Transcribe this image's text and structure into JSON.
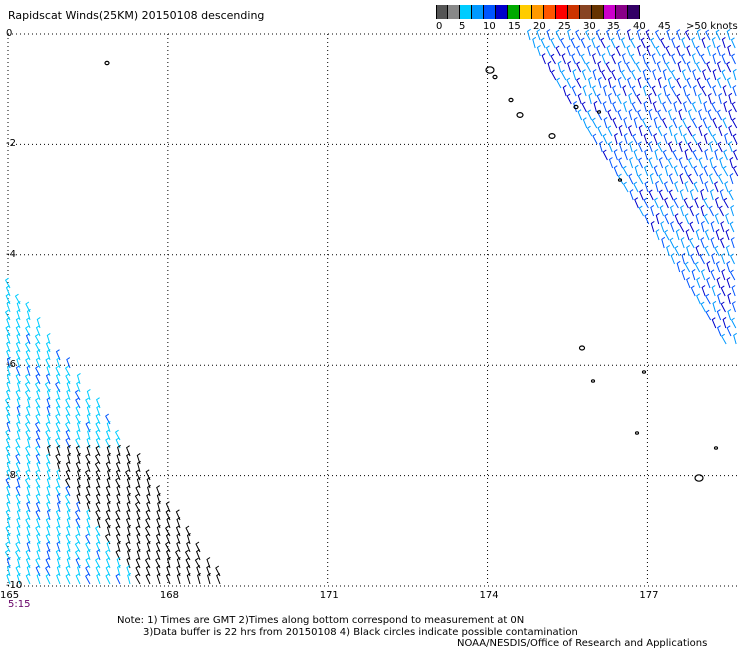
{
  "title": "Rapidscat Winds(25KM) 20150108 descending",
  "legend": {
    "swatches": [
      "#555555",
      "#888888",
      "#00ccff",
      "#0099ff",
      "#0055ff",
      "#0000cc",
      "#00aa00",
      "#ffcc00",
      "#ff9900",
      "#ff5500",
      "#ff0000",
      "#cc3300",
      "#884422",
      "#663300",
      "#cc00cc",
      "#880088",
      "#330066"
    ],
    "labels": [
      "0",
      "5",
      "10",
      "15",
      "20",
      "25",
      "30",
      "35",
      "40",
      "45",
      ">50 knots"
    ]
  },
  "map": {
    "lon_range": [
      165,
      178.7
    ],
    "lat_range": [
      0,
      -10
    ],
    "lon_ticks": [
      "165",
      "168",
      "171",
      "174",
      "177"
    ],
    "lat_ticks": [
      "0",
      "-2",
      "-4",
      "-6",
      "-8",
      "-10"
    ],
    "time_label": "5:15"
  },
  "notes": {
    "line1": "Note: 1) Times are GMT 2)Times along bottom correspond to measurement at 0N",
    "line2": "3)Data buffer is 22 hrs from 20150108 4) Black circles indicate possible contamination",
    "line3": "NOAA/NESDIS/Office of Research and Applications"
  }
}
